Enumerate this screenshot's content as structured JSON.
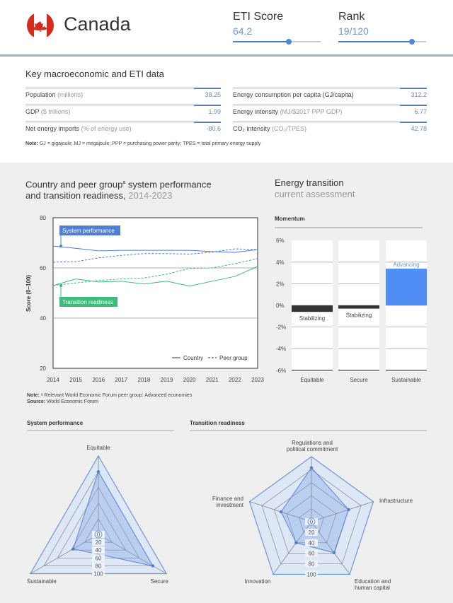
{
  "header": {
    "country": "Canada",
    "eti_label": "ETI Score",
    "eti_value": "64.2",
    "eti_fill": 0.64,
    "rank_label": "Rank",
    "rank_value": "19/120",
    "rank_fill": 0.84,
    "colors": {
      "accent": "#4f86d6",
      "flag_red": "#d52b1e"
    }
  },
  "key_data": {
    "title": "Key macroeconomic and ETI data",
    "left": [
      {
        "label": "Population",
        "unit": "(millions)",
        "value": "38.25"
      },
      {
        "label": "GDP",
        "unit": "($ trillions)",
        "value": "1.99"
      },
      {
        "label": "Net energy imports",
        "unit": "(% of energy use)",
        "value": "-80.6"
      }
    ],
    "right": [
      {
        "label": "Energy consumption per capita (GJ/capita)",
        "unit": "",
        "value": "312.2"
      },
      {
        "label": "Energy intensity",
        "unit": "(MJ/$2017 PPP GDP)",
        "value": "6.77"
      },
      {
        "label": "CO₂ intensity",
        "unit": "(CO₂/TPES)",
        "value": "42.78"
      }
    ],
    "note_label": "Note:",
    "note": "GJ = gigajoule; MJ = megajoule; PPP = purchasing power parity; TPES = total primary energy supply"
  },
  "trend": {
    "title1": "Country and peer group",
    "sup": "a",
    "title2": " system performance",
    "title3": "and transition readiness,",
    "years": " 2014-2023",
    "note_label": "Note:",
    "note": "ᵃ Relevant World Economic Forum peer group: Advanced economies",
    "source_label": "Source:",
    "source": "World Economic Forum"
  },
  "transition": {
    "title": "Energy transition",
    "subtitle": "current assessment"
  },
  "chart_data": [
    {
      "type": "line",
      "ylabel": "Score (0–100)",
      "ylim": [
        20,
        80
      ],
      "yticks": [
        20,
        40,
        60,
        80
      ],
      "x": [
        2014,
        2015,
        2016,
        2017,
        2018,
        2019,
        2020,
        2021,
        2022,
        2023
      ],
      "annotations": [
        "System performance",
        "Transition readiness"
      ],
      "legend": [
        "Country",
        "Peer group"
      ],
      "legend_position": "bottom-right",
      "grid": true,
      "series": [
        {
          "name": "System performance",
          "style": "Country",
          "color": "#4f7fd0",
          "values": [
            68.7,
            67.8,
            66.8,
            67,
            67,
            67,
            67,
            66.5,
            66.2,
            67.3
          ]
        },
        {
          "name": "System performance",
          "style": "Peer group",
          "color": "#4f7fd0",
          "values": [
            62.3,
            62.5,
            64,
            65,
            65.7,
            65.7,
            65.5,
            66.3,
            67.6,
            67.3
          ]
        },
        {
          "name": "Transition readiness",
          "style": "Country",
          "color": "#3dbb7a",
          "values": [
            53,
            55.6,
            54.4,
            54.7,
            53.6,
            54.7,
            52.8,
            54.7,
            56.6,
            60.6
          ]
        },
        {
          "name": "Transition readiness",
          "style": "Peer group",
          "color": "#3dbb7a",
          "values": [
            53,
            54,
            55,
            55.6,
            56,
            57.5,
            59.8,
            60,
            61.7,
            63.7
          ]
        }
      ]
    },
    {
      "type": "bar",
      "title": "Momentum",
      "categories": [
        "Equitable",
        "Secure",
        "Sustainable"
      ],
      "values": [
        -0.6,
        -0.3,
        3.4
      ],
      "labels": [
        "Stabilizing",
        "Stabilizing",
        "Advancing"
      ],
      "ylim": [
        -6,
        6
      ],
      "yticks": [
        "6%",
        "4%",
        "2%",
        "0%",
        "-2%",
        "-4%",
        "-6%"
      ]
    },
    {
      "type": "radar",
      "title": "System performance",
      "categories": [
        "Equitable",
        "Secure",
        "Sustainable"
      ],
      "values": [
        80,
        80,
        37
      ],
      "rings": [
        "0",
        "20",
        "40",
        "60",
        "80",
        "100"
      ]
    },
    {
      "type": "radar",
      "title": "Transition readiness",
      "categories": [
        "Regulations and political commitment",
        "Infrastructure",
        "Education and human capital",
        "Innovation",
        "Finance and investment"
      ],
      "values": [
        83,
        60,
        59,
        40,
        49
      ],
      "rings": [
        "0",
        "20",
        "40",
        "60",
        "80",
        "100"
      ]
    }
  ]
}
